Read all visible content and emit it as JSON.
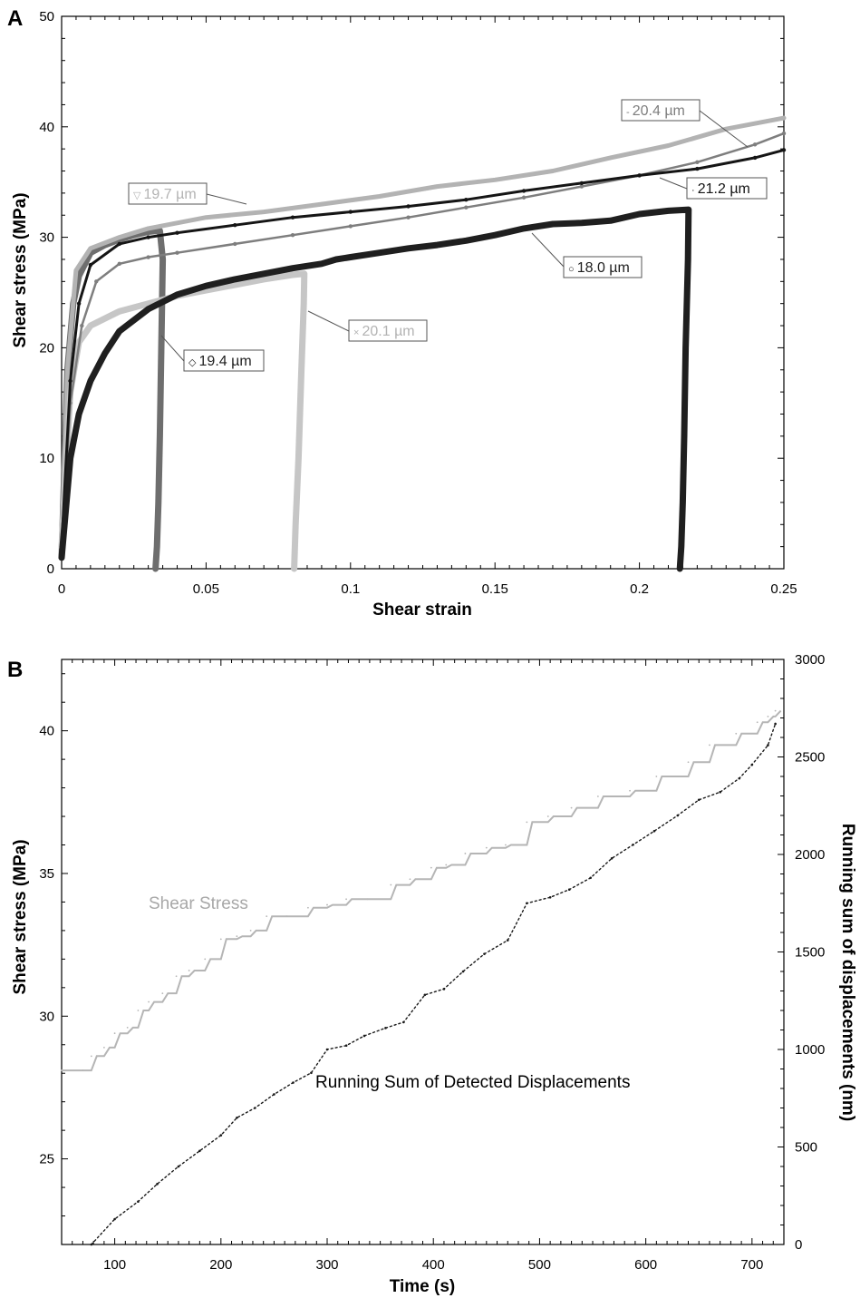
{
  "chart_data": [
    {
      "panel": "A",
      "type": "scatter",
      "xlabel": "Shear strain",
      "ylabel": "Shear stress (MPa)",
      "xlim": [
        0,
        0.25
      ],
      "ylim": [
        0,
        50
      ],
      "xticks": [
        0,
        0.05,
        0.1,
        0.15,
        0.2,
        0.25
      ],
      "xtick_labels": [
        "0",
        "0.05",
        "0.1",
        "0.15",
        "0.2",
        "0.25"
      ],
      "yticks": [
        0,
        10,
        20,
        30,
        40,
        50
      ],
      "ytick_labels": [
        "0",
        "10",
        "20",
        "30",
        "40",
        "50"
      ],
      "grid": false,
      "series": [
        {
          "name": "19.4 µm",
          "symbol": "◇",
          "color": "#6e6e6e",
          "x": [
            0,
            0.002,
            0.004,
            0.006,
            0.01,
            0.015,
            0.02,
            0.025,
            0.03,
            0.034,
            0.035,
            0.0345,
            0.034,
            0.0335,
            0.033,
            0.0325
          ],
          "y": [
            1,
            18,
            24,
            26.5,
            28.6,
            29.3,
            29.8,
            30.2,
            30.5,
            30.6,
            28,
            20,
            12,
            6,
            2,
            0
          ]
        },
        {
          "name": "19.7 µm",
          "symbol": "▽",
          "color": "#b3b3b3",
          "x": [
            0,
            0.002,
            0.005,
            0.01,
            0.02,
            0.03,
            0.05,
            0.07,
            0.09,
            0.11,
            0.13,
            0.15,
            0.17,
            0.19,
            0.21,
            0.23,
            0.25
          ],
          "y": [
            2,
            18,
            27,
            29,
            30,
            30.8,
            31.8,
            32.3,
            33,
            33.7,
            34.6,
            35.2,
            36,
            37.2,
            38.3,
            39.8,
            40.8
          ]
        },
        {
          "name": "20.1 µm",
          "symbol": "×",
          "color": "#c6c6c6",
          "x": [
            0,
            0.003,
            0.006,
            0.01,
            0.02,
            0.03,
            0.04,
            0.05,
            0.06,
            0.07,
            0.08,
            0.084,
            0.0838,
            0.083,
            0.082,
            0.081,
            0.0805
          ],
          "y": [
            2,
            16,
            20.5,
            22,
            23.3,
            24,
            24.7,
            25.2,
            25.7,
            26.2,
            26.6,
            26.7,
            24,
            18,
            10,
            4,
            0
          ]
        },
        {
          "name": "20.4 µm",
          "symbol": "-",
          "color": "#7e7e7e",
          "x": [
            0,
            0.003,
            0.007,
            0.012,
            0.02,
            0.03,
            0.04,
            0.06,
            0.08,
            0.1,
            0.12,
            0.14,
            0.16,
            0.18,
            0.2,
            0.22,
            0.24,
            0.25
          ],
          "y": [
            2,
            15,
            22,
            26,
            27.6,
            28.2,
            28.6,
            29.4,
            30.2,
            31,
            31.8,
            32.7,
            33.6,
            34.6,
            35.6,
            36.8,
            38.4,
            39.4
          ]
        },
        {
          "name": "21.2 µm",
          "symbol": "·",
          "color": "#151515",
          "x": [
            0,
            0.003,
            0.006,
            0.01,
            0.02,
            0.03,
            0.04,
            0.06,
            0.08,
            0.1,
            0.12,
            0.14,
            0.16,
            0.18,
            0.2,
            0.22,
            0.24,
            0.25
          ],
          "y": [
            2,
            17,
            24,
            27.5,
            29.4,
            30,
            30.4,
            31.1,
            31.8,
            32.3,
            32.8,
            33.4,
            34.2,
            34.9,
            35.6,
            36.2,
            37.2,
            37.9
          ]
        },
        {
          "name": "18.0 µm",
          "symbol": "○",
          "color": "#1f1f1f",
          "x": [
            0,
            0.003,
            0.006,
            0.01,
            0.015,
            0.02,
            0.03,
            0.04,
            0.05,
            0.06,
            0.07,
            0.08,
            0.09,
            0.095,
            0.1,
            0.11,
            0.12,
            0.13,
            0.14,
            0.15,
            0.16,
            0.17,
            0.18,
            0.19,
            0.2,
            0.21,
            0.217,
            0.2168,
            0.216,
            0.2155,
            0.215,
            0.2145,
            0.214
          ],
          "y": [
            1,
            10,
            14,
            17,
            19.5,
            21.5,
            23.5,
            24.8,
            25.6,
            26.2,
            26.7,
            27.2,
            27.6,
            28,
            28.2,
            28.6,
            29,
            29.3,
            29.7,
            30.2,
            30.8,
            31.2,
            31.3,
            31.5,
            32.1,
            32.4,
            32.5,
            28,
            20,
            12,
            6,
            2,
            0
          ]
        }
      ],
      "annotations": [
        {
          "text": "20.4 µm",
          "symbol": "-",
          "color": "#7e7e7e"
        },
        {
          "text": "21.2 µm",
          "symbol": "·",
          "color": "#151515"
        },
        {
          "text": "19.7 µm",
          "symbol": "▽",
          "color": "#b3b3b3"
        },
        {
          "text": "18.0 µm",
          "symbol": "○",
          "color": "#1f1f1f"
        },
        {
          "text": "20.1 µm",
          "symbol": "×",
          "color": "#b3b3b3"
        },
        {
          "text": "19.4 µm",
          "symbol": "◇",
          "color": "#1f1f1f"
        }
      ]
    },
    {
      "panel": "B",
      "type": "line",
      "xlabel": "Time (s)",
      "ylabel": "Shear stress (MPa)",
      "ylabel_right": "Running sum of displacements (nm)",
      "xlim": [
        50,
        730
      ],
      "ylim": [
        22,
        42.5
      ],
      "ylim_right": [
        0,
        3000
      ],
      "xticks": [
        100,
        200,
        300,
        400,
        500,
        600,
        700
      ],
      "xtick_labels": [
        "100",
        "200",
        "300",
        "400",
        "500",
        "600",
        "700"
      ],
      "yticks": [
        25,
        30,
        35,
        40
      ],
      "ytick_labels": [
        "25",
        "30",
        "35",
        "40"
      ],
      "yticks_right": [
        0,
        500,
        1000,
        1500,
        2000,
        2500,
        3000
      ],
      "ytick_labels_right": [
        "0",
        "500",
        "1000",
        "1500",
        "2000",
        "2500",
        "3000"
      ],
      "grid": false,
      "series": [
        {
          "name": "Shear Stress",
          "axis": "left",
          "color": "#b5b5b5",
          "x": [
            50,
            70,
            78,
            90,
            100,
            112,
            122,
            132,
            145,
            158,
            170,
            185,
            200,
            215,
            228,
            243,
            262,
            282,
            300,
            318,
            338,
            360,
            378,
            398,
            412,
            430,
            450,
            468,
            488,
            508,
            530,
            555,
            585,
            610,
            640,
            660,
            685,
            705,
            715,
            722
          ],
          "y": [
            28.1,
            28.1,
            28.6,
            28.9,
            29.4,
            29.6,
            30.2,
            30.5,
            30.8,
            31.4,
            31.6,
            32.0,
            32.7,
            32.8,
            33.0,
            33.5,
            33.5,
            33.8,
            33.9,
            34.1,
            34.1,
            34.6,
            34.8,
            35.2,
            35.3,
            35.7,
            35.9,
            36.0,
            36.8,
            37.0,
            37.3,
            37.7,
            37.9,
            38.4,
            38.9,
            39.5,
            39.9,
            40.3,
            40.5,
            40.7
          ]
        },
        {
          "name": "Running Sum of Detected Displacements",
          "axis": "right",
          "color": "#1a1a1a",
          "x": [
            78,
            100,
            122,
            140,
            160,
            180,
            200,
            215,
            232,
            250,
            268,
            285,
            300,
            318,
            335,
            355,
            372,
            392,
            410,
            428,
            448,
            470,
            488,
            510,
            528,
            548,
            568,
            588,
            608,
            630,
            650,
            670,
            688,
            700,
            715,
            722
          ],
          "y": [
            0,
            130,
            220,
            310,
            400,
            480,
            560,
            650,
            700,
            770,
            830,
            880,
            1000,
            1020,
            1070,
            1110,
            1140,
            1280,
            1310,
            1400,
            1490,
            1560,
            1750,
            1780,
            1820,
            1880,
            1980,
            2050,
            2120,
            2200,
            2280,
            2320,
            2390,
            2460,
            2560,
            2670
          ]
        }
      ]
    }
  ]
}
